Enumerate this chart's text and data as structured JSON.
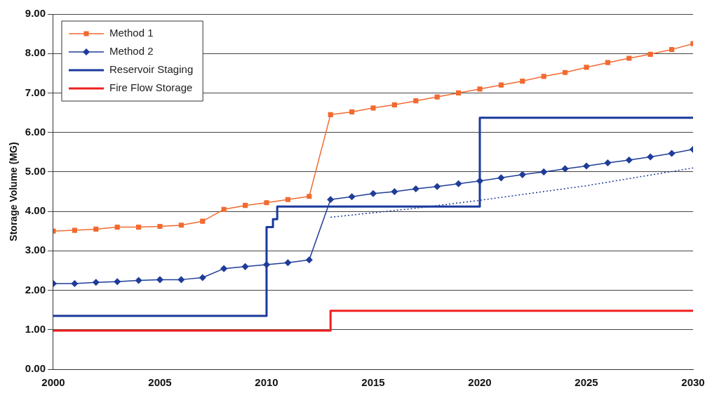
{
  "chart_data": {
    "type": "line",
    "ylabel": "Storage Volume (MG)",
    "xlim": [
      2000,
      2030
    ],
    "xticks": [
      2000,
      2005,
      2010,
      2015,
      2020,
      2025,
      2030
    ],
    "ylim": [
      0,
      9
    ],
    "yticks": [
      {
        "value": 0,
        "label": "0.00"
      },
      {
        "value": 1,
        "label": "1.00"
      },
      {
        "value": 2,
        "label": "2.00"
      },
      {
        "value": 3,
        "label": "3.00"
      },
      {
        "value": 4,
        "label": "4.00"
      },
      {
        "value": 5,
        "label": "5.00"
      },
      {
        "value": 6,
        "label": "6.00"
      },
      {
        "value": 7,
        "label": "7.00"
      },
      {
        "value": 8,
        "label": "8.00"
      },
      {
        "value": 9,
        "label": "9.00"
      }
    ],
    "grid": "y",
    "legend": "top left",
    "series": [
      {
        "name": "Method 1",
        "color": "#f26a30",
        "marker": "square",
        "x": [
          2000,
          2001,
          2002,
          2003,
          2004,
          2005,
          2006,
          2007,
          2008,
          2009,
          2010,
          2011,
          2012,
          2013,
          2014,
          2015,
          2016,
          2017,
          2018,
          2019,
          2020,
          2021,
          2022,
          2023,
          2024,
          2025,
          2026,
          2027,
          2028,
          2029,
          2030
        ],
        "values": [
          3.5,
          3.52,
          3.55,
          3.6,
          3.6,
          3.62,
          3.65,
          3.75,
          4.05,
          4.15,
          4.22,
          4.3,
          4.38,
          6.45,
          6.52,
          6.62,
          6.7,
          6.8,
          6.9,
          7.0,
          7.1,
          7.2,
          7.3,
          7.42,
          7.52,
          7.65,
          7.77,
          7.88,
          7.98,
          8.1,
          8.25
        ]
      },
      {
        "name": "Method 2",
        "color": "#1f3c99",
        "marker": "diamond",
        "x": [
          2000,
          2001,
          2002,
          2003,
          2004,
          2005,
          2006,
          2007,
          2008,
          2009,
          2010,
          2011,
          2012,
          2013,
          2014,
          2015,
          2016,
          2017,
          2018,
          2019,
          2020,
          2021,
          2022,
          2023,
          2024,
          2025,
          2026,
          2027,
          2028,
          2029,
          2030
        ],
        "values": [
          2.17,
          2.17,
          2.2,
          2.22,
          2.25,
          2.27,
          2.27,
          2.32,
          2.55,
          2.6,
          2.65,
          2.7,
          2.77,
          4.3,
          4.37,
          4.45,
          4.5,
          4.57,
          4.63,
          4.7,
          4.77,
          4.85,
          4.93,
          5.0,
          5.08,
          5.15,
          5.23,
          5.3,
          5.38,
          5.47,
          5.57
        ]
      },
      {
        "name": "Reservoir Staging",
        "type": "step",
        "color": "#1a3a9c",
        "marker": "none",
        "x": [
          2000,
          2010,
          2010.3,
          2010.5,
          2020,
          2030
        ],
        "values": [
          1.35,
          3.6,
          3.8,
          4.12,
          6.37,
          6.37
        ]
      },
      {
        "name": "Fire Flow Storage",
        "type": "step",
        "color": "#f02020",
        "marker": "none",
        "x": [
          2000,
          2013,
          2030
        ],
        "values": [
          0.98,
          1.48,
          1.48
        ]
      },
      {
        "color": "#1f3c99",
        "marker": "none",
        "line_style": "dotted",
        "x": [
          2013,
          2017,
          2020,
          2025,
          2030
        ],
        "values": [
          3.85,
          4.08,
          4.28,
          4.65,
          5.1
        ]
      }
    ]
  }
}
